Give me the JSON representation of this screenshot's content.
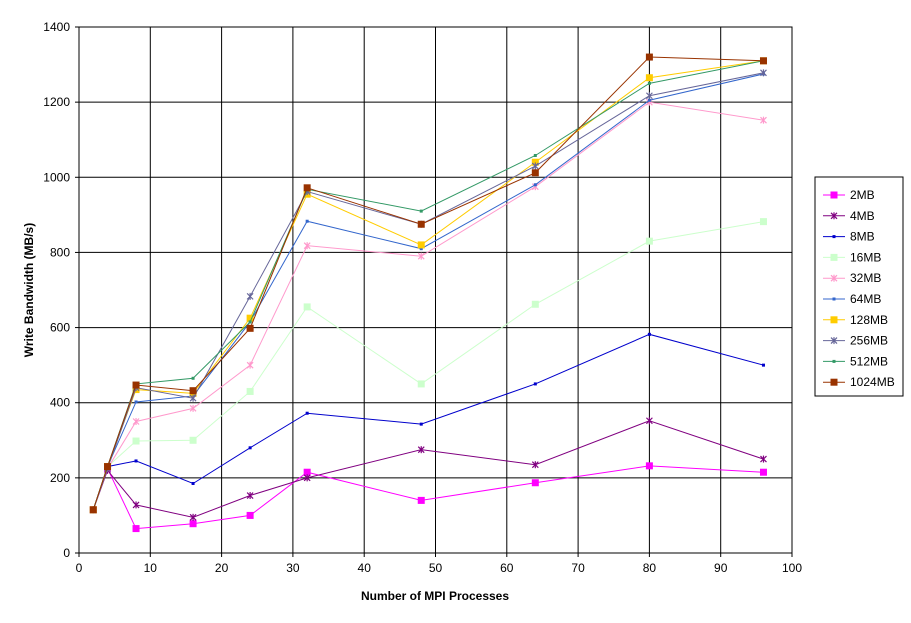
{
  "chart_data": {
    "type": "line",
    "xlabel": "Number of MPI Processes",
    "ylabel": "Write Bandwidth (MB/s)",
    "xlim": [
      0,
      100
    ],
    "ylim": [
      0,
      1400
    ],
    "x_ticks": [
      0,
      10,
      20,
      30,
      40,
      50,
      60,
      70,
      80,
      90,
      100
    ],
    "y_ticks": [
      0,
      200,
      400,
      600,
      800,
      1000,
      1200,
      1400
    ],
    "grid": true,
    "legend_position": "right",
    "x": [
      2,
      4,
      8,
      16,
      24,
      32,
      48,
      64,
      80,
      96
    ],
    "series": [
      {
        "name": "2MB",
        "color": "#ff00ff",
        "marker": "square",
        "values": [
          115,
          225,
          65,
          78,
          100,
          215,
          140,
          187,
          232,
          215
        ]
      },
      {
        "name": "4MB",
        "color": "#800080",
        "marker": "star",
        "values": [
          115,
          220,
          128,
          95,
          153,
          200,
          275,
          235,
          352,
          250
        ]
      },
      {
        "name": "8MB",
        "color": "#0000cc",
        "marker": "dot",
        "values": [
          115,
          230,
          245,
          185,
          280,
          372,
          343,
          450,
          582,
          500
        ]
      },
      {
        "name": "16MB",
        "color": "#ccffcc",
        "marker": "square",
        "values": [
          115,
          230,
          298,
          300,
          430,
          655,
          450,
          662,
          830,
          882
        ]
      },
      {
        "name": "32MB",
        "color": "#ff99cc",
        "marker": "star",
        "values": [
          115,
          225,
          350,
          385,
          500,
          818,
          790,
          975,
          1200,
          1152
        ]
      },
      {
        "name": "64MB",
        "color": "#3366cc",
        "marker": "dot",
        "values": [
          115,
          230,
          402,
          418,
          615,
          883,
          810,
          980,
          1205,
          1275
        ]
      },
      {
        "name": "128MB",
        "color": "#ffcc00",
        "marker": "square",
        "values": [
          115,
          230,
          435,
          425,
          625,
          955,
          820,
          1040,
          1265,
          1310
        ]
      },
      {
        "name": "256MB",
        "color": "#666699",
        "marker": "star",
        "values": [
          115,
          225,
          440,
          412,
          683,
          962,
          875,
          1030,
          1217,
          1278
        ]
      },
      {
        "name": "512MB",
        "color": "#339966",
        "marker": "dot",
        "values": [
          115,
          230,
          450,
          465,
          615,
          968,
          910,
          1058,
          1250,
          1310
        ]
      },
      {
        "name": "1024MB",
        "color": "#993300",
        "marker": "square",
        "values": [
          115,
          230,
          447,
          432,
          598,
          972,
          875,
          1012,
          1320,
          1310
        ]
      }
    ]
  }
}
